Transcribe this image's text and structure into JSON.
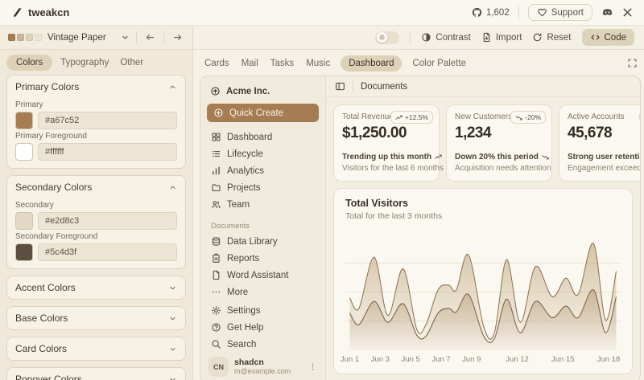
{
  "header": {
    "logo_text": "tweakcn",
    "stars_count": "1,602",
    "support_label": "Support"
  },
  "toolbar": {
    "theme_name": "Vintage Paper",
    "theme_swatches": [
      "#a67c52",
      "#c9b698",
      "#ddd2ba",
      "#ece5d4"
    ],
    "contrast_label": "Contrast",
    "import_label": "Import",
    "reset_label": "Reset",
    "code_label": "Code"
  },
  "editor": {
    "tabs": [
      {
        "label": "Colors"
      },
      {
        "label": "Typography"
      },
      {
        "label": "Other"
      }
    ],
    "active_tab": "Colors",
    "sections": [
      {
        "title": "Primary Colors",
        "expanded": true,
        "fields": [
          {
            "label": "Primary",
            "value": "#a67c52"
          },
          {
            "label": "Primary Foreground",
            "value": "#ffffff"
          }
        ]
      },
      {
        "title": "Secondary Colors",
        "expanded": true,
        "fields": [
          {
            "label": "Secondary",
            "value": "#e2d8c3"
          },
          {
            "label": "Secondary Foreground",
            "value": "#5c4d3f"
          }
        ]
      },
      {
        "title": "Accent Colors",
        "expanded": false
      },
      {
        "title": "Base Colors",
        "expanded": false
      },
      {
        "title": "Card Colors",
        "expanded": false
      },
      {
        "title": "Popover Colors",
        "expanded": false
      }
    ]
  },
  "preview": {
    "tabs": [
      {
        "label": "Cards"
      },
      {
        "label": "Mail"
      },
      {
        "label": "Tasks"
      },
      {
        "label": "Music"
      },
      {
        "label": "Dashboard"
      },
      {
        "label": "Color Palette"
      }
    ],
    "active_tab": "Dashboard",
    "app": {
      "org_name": "Acme Inc.",
      "quick_create_label": "Quick Create",
      "nav_main": [
        {
          "icon": "grid-icon",
          "label": "Dashboard"
        },
        {
          "icon": "list-icon",
          "label": "Lifecycle"
        },
        {
          "icon": "bar-chart-icon",
          "label": "Analytics"
        },
        {
          "icon": "folder-icon",
          "label": "Projects"
        },
        {
          "icon": "users-icon",
          "label": "Team"
        }
      ],
      "nav_documents_label": "Documents",
      "nav_documents": [
        {
          "icon": "database-icon",
          "label": "Data Library"
        },
        {
          "icon": "report-icon",
          "label": "Reports"
        },
        {
          "icon": "file-icon",
          "label": "Word Assistant"
        },
        {
          "icon": "dots-icon",
          "label": "More"
        }
      ],
      "nav_footer": [
        {
          "icon": "gear-icon",
          "label": "Settings"
        },
        {
          "icon": "help-icon",
          "label": "Get Help"
        },
        {
          "icon": "search-icon",
          "label": "Search"
        }
      ],
      "user": {
        "initials": "CN",
        "name": "shadcn",
        "email": "m@example.com"
      },
      "page_title": "Documents",
      "stat_cards": [
        {
          "label": "Total Revenue",
          "badge": "+12.5%",
          "badge_trend": "up",
          "value": "$1,250.00",
          "footnote_strong": "Trending up this month",
          "footnote": "Visitors for the last 6 months"
        },
        {
          "label": "New Customers",
          "badge": "-20%",
          "badge_trend": "down",
          "value": "1,234",
          "footnote_strong": "Down 20% this period",
          "footnote": "Acquisition needs attention"
        },
        {
          "label": "Active Accounts",
          "badge": "",
          "badge_trend": "up",
          "value": "45,678",
          "footnote_strong": "Strong user retention",
          "footnote": "Engagement exceed targets"
        }
      ]
    }
  },
  "chart_data": {
    "type": "area",
    "title": "Total Visitors",
    "subtitle": "Total for the last 3 months",
    "x_domain": [
      0,
      17.5
    ],
    "y_domain": [
      0,
      100
    ],
    "grid": "horizontal",
    "legend": false,
    "ticks": [
      {
        "x": 0,
        "label": "Jun 1"
      },
      {
        "x": 2,
        "label": "Jun 3"
      },
      {
        "x": 4,
        "label": "Jun 5"
      },
      {
        "x": 6,
        "label": "Jun 7"
      },
      {
        "x": 8,
        "label": "Jun 9"
      },
      {
        "x": 11,
        "label": "Jun 12"
      },
      {
        "x": 14,
        "label": "Jun 15"
      },
      {
        "x": 17,
        "label": "Jun 18"
      }
    ],
    "series": [
      {
        "name": "series-total",
        "stroke": "#8d7050",
        "fill_top": "#c8b28d",
        "points": [
          [
            0,
            45
          ],
          [
            0.6,
            36
          ],
          [
            1.6,
            80
          ],
          [
            2.5,
            30
          ],
          [
            3.5,
            70
          ],
          [
            4.4,
            18
          ],
          [
            5.0,
            22
          ],
          [
            5.8,
            52
          ],
          [
            6.5,
            56
          ],
          [
            7.0,
            52
          ],
          [
            7.8,
            82
          ],
          [
            8.8,
            20
          ],
          [
            9.5,
            15
          ],
          [
            10.3,
            78
          ],
          [
            11.2,
            24
          ],
          [
            12.2,
            72
          ],
          [
            13.3,
            46
          ],
          [
            14.2,
            62
          ],
          [
            15.0,
            48
          ],
          [
            16.0,
            92
          ],
          [
            16.8,
            26
          ],
          [
            17.5,
            68
          ]
        ]
      },
      {
        "name": "series-secondary",
        "stroke": "#7a5f45",
        "fill_top": "#a98a63",
        "points": [
          [
            0,
            32
          ],
          [
            0.6,
            22
          ],
          [
            1.6,
            42
          ],
          [
            2.5,
            24
          ],
          [
            3.5,
            40
          ],
          [
            4.4,
            13
          ],
          [
            5.0,
            12
          ],
          [
            5.8,
            32
          ],
          [
            6.5,
            36
          ],
          [
            7.0,
            33
          ],
          [
            7.8,
            48
          ],
          [
            8.8,
            12
          ],
          [
            9.5,
            10
          ],
          [
            10.3,
            44
          ],
          [
            11.2,
            15
          ],
          [
            12.2,
            42
          ],
          [
            13.3,
            28
          ],
          [
            14.2,
            38
          ],
          [
            15.0,
            28
          ],
          [
            16.0,
            52
          ],
          [
            16.8,
            15
          ],
          [
            17.5,
            46
          ]
        ]
      }
    ]
  }
}
